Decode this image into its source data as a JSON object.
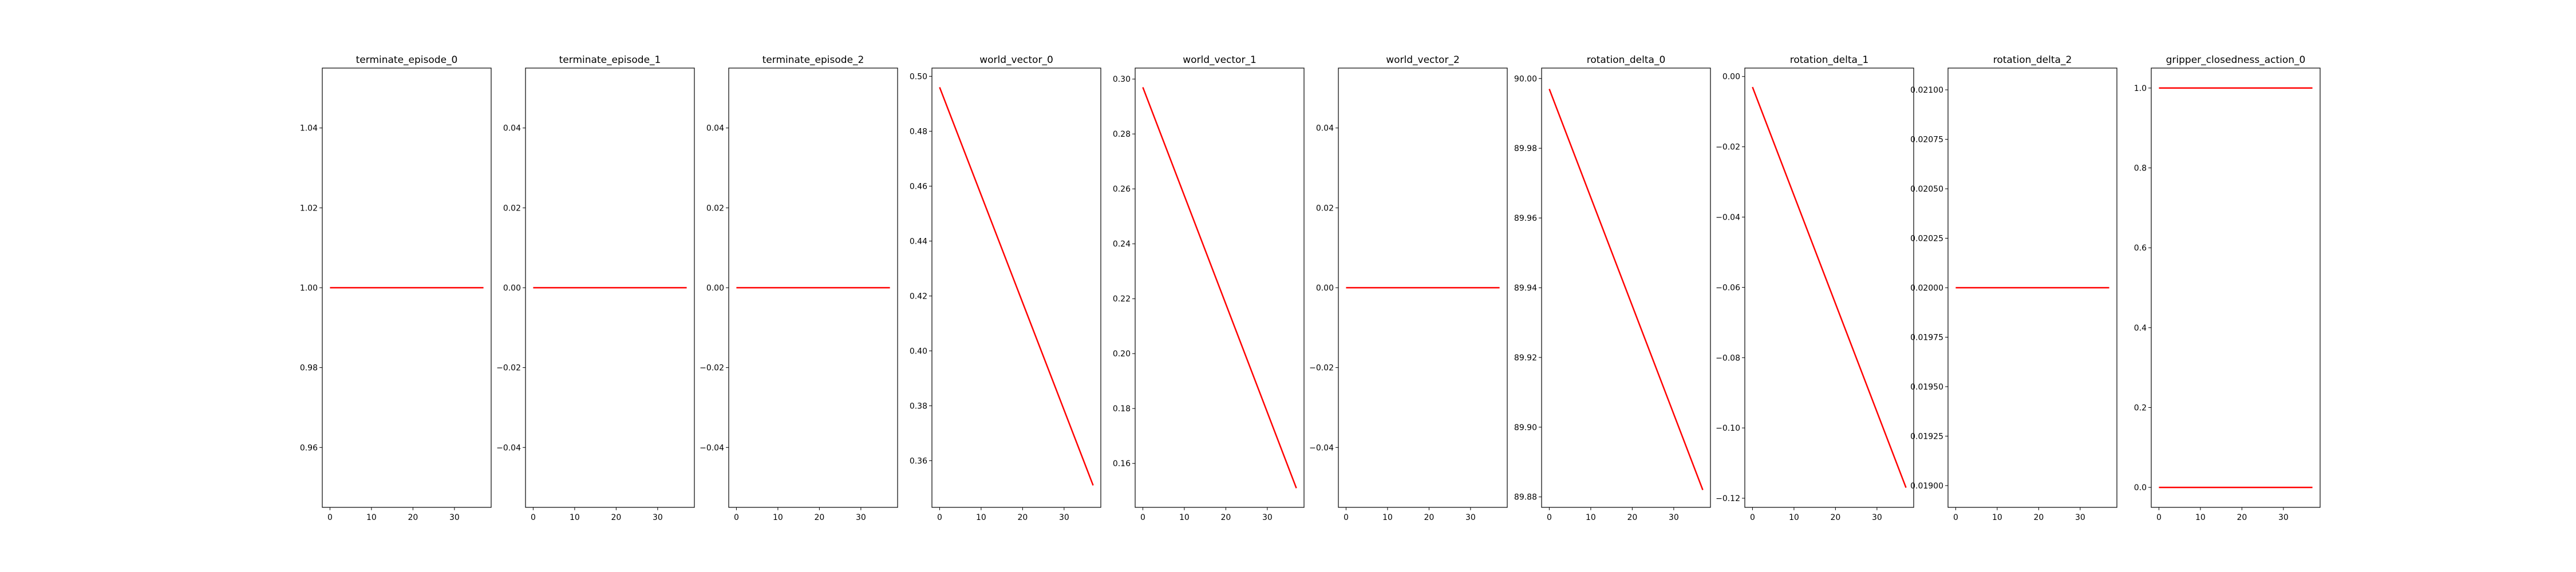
{
  "figure": {
    "background": "#ffffff"
  },
  "chart_data": [
    {
      "type": "line",
      "title": "terminate_episode_0",
      "xlabel": "",
      "ylabel": "",
      "xlim": [
        -1.85,
        38.85
      ],
      "ylim": [
        0.945,
        1.055
      ],
      "xticks": [
        0,
        10,
        20,
        30
      ],
      "yticks": [
        0.96,
        0.98,
        1.0,
        1.02,
        1.04
      ],
      "ytick_labels": [
        "0.96",
        "0.98",
        "1.00",
        "1.02",
        "1.04"
      ],
      "series": [
        {
          "color": "#ff0000",
          "x": [
            0,
            37
          ],
          "y": [
            1.0,
            1.0
          ]
        }
      ],
      "grid": false
    },
    {
      "type": "line",
      "title": "terminate_episode_1",
      "xlabel": "",
      "ylabel": "",
      "xlim": [
        -1.85,
        38.85
      ],
      "ylim": [
        -0.055,
        0.055
      ],
      "xticks": [
        0,
        10,
        20,
        30
      ],
      "yticks": [
        -0.04,
        -0.02,
        0.0,
        0.02,
        0.04
      ],
      "ytick_labels": [
        "−0.04",
        "−0.02",
        "0.00",
        "0.02",
        "0.04"
      ],
      "series": [
        {
          "color": "#ff0000",
          "x": [
            0,
            37
          ],
          "y": [
            0.0,
            0.0
          ]
        }
      ],
      "grid": false
    },
    {
      "type": "line",
      "title": "terminate_episode_2",
      "xlabel": "",
      "ylabel": "",
      "xlim": [
        -1.85,
        38.85
      ],
      "ylim": [
        -0.055,
        0.055
      ],
      "xticks": [
        0,
        10,
        20,
        30
      ],
      "yticks": [
        -0.04,
        -0.02,
        0.0,
        0.02,
        0.04
      ],
      "ytick_labels": [
        "−0.04",
        "−0.02",
        "0.00",
        "0.02",
        "0.04"
      ],
      "series": [
        {
          "color": "#ff0000",
          "x": [
            0,
            37
          ],
          "y": [
            0.0,
            0.0
          ]
        }
      ],
      "grid": false
    },
    {
      "type": "line",
      "title": "world_vector_0",
      "xlabel": "",
      "ylabel": "",
      "xlim": [
        -1.85,
        38.85
      ],
      "ylim": [
        0.343,
        0.503
      ],
      "xticks": [
        0,
        10,
        20,
        30
      ],
      "yticks": [
        0.36,
        0.38,
        0.4,
        0.42,
        0.44,
        0.46,
        0.48,
        0.5
      ],
      "ytick_labels": [
        "0.36",
        "0.38",
        "0.40",
        "0.42",
        "0.44",
        "0.46",
        "0.48",
        "0.50"
      ],
      "series": [
        {
          "color": "#ff0000",
          "x": [
            0,
            37
          ],
          "y": [
            0.496,
            0.351
          ]
        }
      ],
      "grid": false
    },
    {
      "type": "line",
      "title": "world_vector_1",
      "xlabel": "",
      "ylabel": "",
      "xlim": [
        -1.85,
        38.85
      ],
      "ylim": [
        0.144,
        0.304
      ],
      "xticks": [
        0,
        10,
        20,
        30
      ],
      "yticks": [
        0.16,
        0.18,
        0.2,
        0.22,
        0.24,
        0.26,
        0.28,
        0.3
      ],
      "ytick_labels": [
        "0.16",
        "0.18",
        "0.20",
        "0.22",
        "0.24",
        "0.26",
        "0.28",
        "0.30"
      ],
      "series": [
        {
          "color": "#ff0000",
          "x": [
            0,
            37
          ],
          "y": [
            0.297,
            0.151
          ]
        }
      ],
      "grid": false
    },
    {
      "type": "line",
      "title": "world_vector_2",
      "xlabel": "",
      "ylabel": "",
      "xlim": [
        -1.85,
        38.85
      ],
      "ylim": [
        -0.055,
        0.055
      ],
      "xticks": [
        0,
        10,
        20,
        30
      ],
      "yticks": [
        -0.04,
        -0.02,
        0.0,
        0.02,
        0.04
      ],
      "ytick_labels": [
        "−0.04",
        "−0.02",
        "0.00",
        "0.02",
        "0.04"
      ],
      "series": [
        {
          "color": "#ff0000",
          "x": [
            0,
            37
          ],
          "y": [
            0.0,
            0.0
          ]
        }
      ],
      "grid": false
    },
    {
      "type": "line",
      "title": "rotation_delta_0",
      "xlabel": "",
      "ylabel": "",
      "xlim": [
        -1.85,
        38.85
      ],
      "ylim": [
        89.877,
        90.003
      ],
      "xticks": [
        0,
        10,
        20,
        30
      ],
      "yticks": [
        89.88,
        89.9,
        89.92,
        89.94,
        89.96,
        89.98,
        90.0
      ],
      "ytick_labels": [
        "89.88",
        "89.90",
        "89.92",
        "89.94",
        "89.96",
        "89.98",
        "90.00"
      ],
      "series": [
        {
          "color": "#ff0000",
          "x": [
            0,
            37
          ],
          "y": [
            89.997,
            89.882
          ]
        }
      ],
      "grid": false
    },
    {
      "type": "line",
      "title": "rotation_delta_1",
      "xlabel": "",
      "ylabel": "",
      "xlim": [
        -1.85,
        38.85
      ],
      "ylim": [
        -0.1226,
        0.0024
      ],
      "xticks": [
        0,
        10,
        20,
        30
      ],
      "yticks": [
        -0.12,
        -0.1,
        -0.08,
        -0.06,
        -0.04,
        -0.02,
        0.0
      ],
      "ytick_labels": [
        "−0.12",
        "−0.10",
        "−0.08",
        "−0.06",
        "−0.04",
        "−0.02",
        "0.00"
      ],
      "series": [
        {
          "color": "#ff0000",
          "x": [
            0,
            37
          ],
          "y": [
            -0.003,
            -0.117
          ]
        }
      ],
      "grid": false
    },
    {
      "type": "line",
      "title": "rotation_delta_2",
      "xlabel": "",
      "ylabel": "",
      "xlim": [
        -1.85,
        38.85
      ],
      "ylim": [
        0.01889,
        0.02111
      ],
      "xticks": [
        0,
        10,
        20,
        30
      ],
      "yticks": [
        0.019,
        0.01925,
        0.0195,
        0.01975,
        0.02,
        0.02025,
        0.0205,
        0.02075,
        0.021
      ],
      "ytick_labels": [
        "0.01900",
        "0.01925",
        "0.01950",
        "0.01975",
        "0.02000",
        "0.02025",
        "0.02050",
        "0.02075",
        "0.02100"
      ],
      "series": [
        {
          "color": "#ff0000",
          "x": [
            0,
            37
          ],
          "y": [
            0.02,
            0.02
          ]
        }
      ],
      "grid": false
    },
    {
      "type": "line",
      "title": "gripper_closedness_action_0",
      "xlabel": "",
      "ylabel": "",
      "xlim": [
        -1.85,
        38.85
      ],
      "ylim": [
        -0.05,
        1.05
      ],
      "xticks": [
        0,
        10,
        20,
        30
      ],
      "yticks": [
        0.0,
        0.2,
        0.4,
        0.6,
        0.8,
        1.0
      ],
      "ytick_labels": [
        "0.0",
        "0.2",
        "0.4",
        "0.6",
        "0.8",
        "1.0"
      ],
      "series": [
        {
          "color": "#ff0000",
          "x": [
            0,
            37
          ],
          "y": [
            1.0,
            1.0
          ]
        },
        {
          "color": "#ff0000",
          "x": [
            0,
            37
          ],
          "y": [
            0.0,
            0.0
          ]
        }
      ],
      "grid": false
    }
  ]
}
